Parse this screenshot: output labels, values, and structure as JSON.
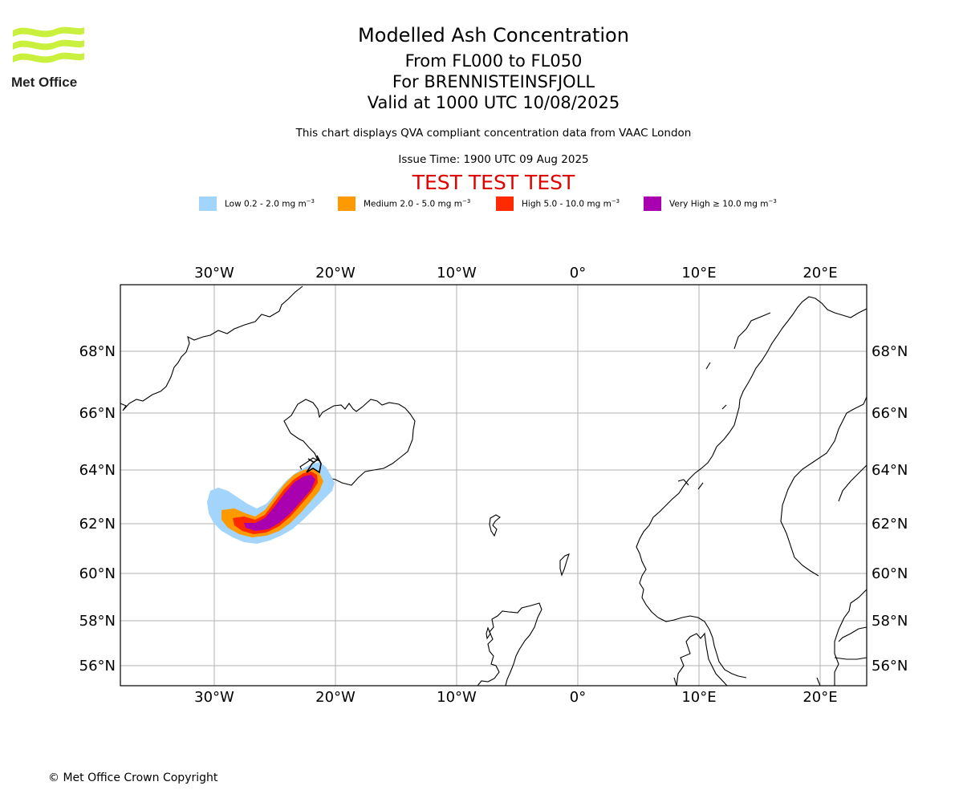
{
  "logo": {
    "text": "Met Office",
    "color": "#c8f03c"
  },
  "header": {
    "title": "Modelled Ash Concentration",
    "subtitle_levels": "From FL000 to FL050",
    "subtitle_volcano": "For BRENNISTEINSFJOLL",
    "subtitle_valid": "Valid at 1000 UTC 10/08/2025",
    "description": "This chart displays QVA compliant concentration data from VAAC London",
    "issue_time": "Issue Time: 1900 UTC 09 Aug 2025",
    "test_banner": "TEST TEST TEST"
  },
  "legend": [
    {
      "label": "Low 0.2 - 2.0 mg m",
      "unit_exp": "−3",
      "color": "#a3d4fb"
    },
    {
      "label": "Medium 2.0 - 5.0 mg m",
      "unit_exp": "−3",
      "color": "#ff9900"
    },
    {
      "label": "High 5.0 - 10.0 mg m",
      "unit_exp": "−3",
      "color": "#ff2a00"
    },
    {
      "label": "Very High  ≥  10.0 mg m",
      "unit_exp": "−3",
      "color": "#a900b0"
    }
  ],
  "map": {
    "lon_ticks": [
      "30°W",
      "20°W",
      "10°W",
      "0°",
      "10°E",
      "20°E"
    ],
    "lat_ticks": [
      "68°N",
      "66°N",
      "64°N",
      "62°N",
      "60°N",
      "58°N",
      "56°N"
    ],
    "grid": true
  },
  "footer": {
    "copyright": "© Met Office Crown Copyright"
  }
}
